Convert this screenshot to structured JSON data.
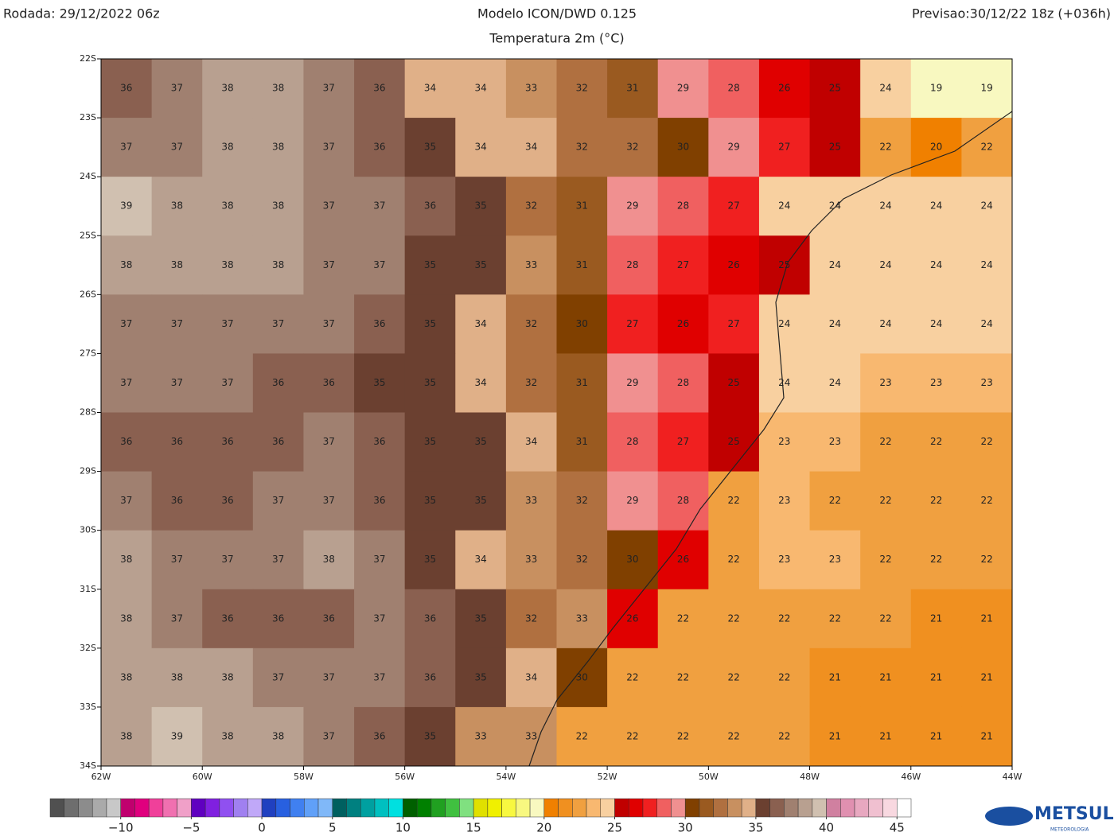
{
  "header": {
    "run": "Rodada: 29/12/2022 06z",
    "model": "Modelo ICON/DWD 0.125",
    "forecast": "Previsao:30/12/22 18z (+036h)",
    "subtitle": "Temperatura 2m (°C)"
  },
  "map": {
    "lon_range": [
      -62,
      -44
    ],
    "lat_range": [
      -22,
      -34
    ],
    "lat_ticks": [
      {
        "value": -22,
        "label": "22S"
      },
      {
        "value": -23,
        "label": "23S"
      },
      {
        "value": -24,
        "label": "24S"
      },
      {
        "value": -25,
        "label": "25S"
      },
      {
        "value": -26,
        "label": "26S"
      },
      {
        "value": -27,
        "label": "27S"
      },
      {
        "value": -28,
        "label": "28S"
      },
      {
        "value": -29,
        "label": "29S"
      },
      {
        "value": -30,
        "label": "30S"
      },
      {
        "value": -31,
        "label": "31S"
      },
      {
        "value": -32,
        "label": "32S"
      },
      {
        "value": -33,
        "label": "33S"
      },
      {
        "value": -34,
        "label": "34S"
      }
    ],
    "lon_ticks": [
      {
        "value": -62,
        "label": "62W"
      },
      {
        "value": -60,
        "label": "60W"
      },
      {
        "value": -58,
        "label": "58W"
      },
      {
        "value": -56,
        "label": "56W"
      },
      {
        "value": -54,
        "label": "54W"
      },
      {
        "value": -52,
        "label": "52W"
      },
      {
        "value": -50,
        "label": "50W"
      },
      {
        "value": -48,
        "label": "48W"
      },
      {
        "value": -46,
        "label": "46W"
      },
      {
        "value": -44,
        "label": "44W"
      }
    ],
    "grid_values": [
      [
        36,
        37,
        38,
        38,
        37,
        36,
        34,
        34,
        33,
        32,
        31,
        29,
        28,
        26,
        25,
        24,
        19,
        19
      ],
      [
        37,
        37,
        38,
        38,
        37,
        36,
        35,
        34,
        34,
        32,
        32,
        30,
        29,
        27,
        25,
        22,
        20,
        22
      ],
      [
        39,
        38,
        38,
        38,
        37,
        37,
        36,
        35,
        32,
        31,
        29,
        28,
        27,
        24,
        24,
        24,
        24,
        24
      ],
      [
        38,
        38,
        38,
        38,
        37,
        37,
        35,
        35,
        33,
        31,
        28,
        27,
        26,
        25,
        24,
        24,
        24,
        24
      ],
      [
        37,
        37,
        37,
        37,
        37,
        36,
        35,
        34,
        32,
        30,
        27,
        26,
        27,
        24,
        24,
        24,
        24,
        24
      ],
      [
        37,
        37,
        37,
        36,
        36,
        35,
        35,
        34,
        32,
        31,
        29,
        28,
        25,
        24,
        24,
        23,
        23,
        23
      ],
      [
        36,
        36,
        36,
        36,
        37,
        36,
        35,
        35,
        34,
        31,
        28,
        27,
        25,
        23,
        23,
        22,
        22,
        22
      ],
      [
        37,
        36,
        36,
        37,
        37,
        36,
        35,
        35,
        33,
        32,
        29,
        28,
        22,
        23,
        22,
        22,
        22,
        22
      ],
      [
        38,
        37,
        37,
        37,
        38,
        37,
        35,
        34,
        33,
        32,
        30,
        26,
        22,
        23,
        23,
        22,
        22,
        22
      ],
      [
        38,
        37,
        36,
        36,
        36,
        37,
        36,
        35,
        32,
        33,
        26,
        22,
        22,
        22,
        22,
        22,
        21,
        21
      ],
      [
        38,
        38,
        38,
        37,
        37,
        37,
        36,
        35,
        34,
        30,
        22,
        22,
        22,
        22,
        21,
        21,
        21,
        21
      ],
      [
        38,
        39,
        38,
        38,
        37,
        36,
        35,
        33,
        33,
        22,
        22,
        22,
        22,
        22,
        21,
        21,
        21,
        21
      ]
    ]
  },
  "colorbar": {
    "start": -15,
    "colors": [
      "#505050",
      "#6e6e6e",
      "#8c8c8c",
      "#aaaaaa",
      "#c8c8c8",
      "#c0006e",
      "#e0007e",
      "#f0409a",
      "#f070b0",
      "#f0a0c8",
      "#6000c0",
      "#8020e0",
      "#9050f0",
      "#a080f0",
      "#c0a8f8",
      "#2040c0",
      "#2860e0",
      "#4080f0",
      "#60a0f8",
      "#80b8f8",
      "#006060",
      "#008080",
      "#00a0a0",
      "#00c0c0",
      "#00e0e0",
      "#006000",
      "#008000",
      "#20a020",
      "#40c040",
      "#80e080",
      "#e0e000",
      "#f0f000",
      "#f8f840",
      "#f8f880",
      "#f8f8c0",
      "#f08000",
      "#f09020",
      "#f0a040",
      "#f8b870",
      "#f8d0a0",
      "#c00000",
      "#e00000",
      "#f02020",
      "#f06060",
      "#f09090",
      "#804000",
      "#9a5a20",
      "#b07040",
      "#c89060",
      "#e0b088",
      "#6b4030",
      "#8a6050",
      "#a08070",
      "#b8a090",
      "#d0c0b0",
      "#d080a0",
      "#e090b0",
      "#e8a8c0",
      "#f0c0d0",
      "#f8d8e0",
      "#ffffff"
    ],
    "ticks": [
      {
        "value": -10,
        "label": "−10"
      },
      {
        "value": -5,
        "label": "−5"
      },
      0,
      5,
      10,
      15,
      20,
      25,
      30,
      35,
      40,
      45
    ]
  },
  "logo": {
    "name": "METSUL",
    "tagline": "METEOROLOGIA"
  }
}
